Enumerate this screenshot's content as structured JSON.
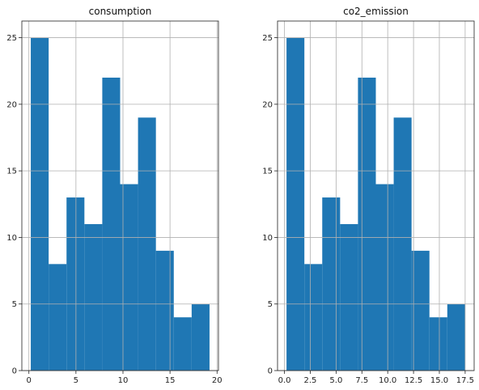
{
  "chart_data": [
    {
      "type": "bar",
      "title": "consumption",
      "xlabel": "",
      "ylabel": "",
      "grid": true,
      "bin_edges": [
        0.2,
        2.1,
        4.0,
        5.9,
        7.8,
        9.7,
        11.6,
        13.5,
        15.4,
        17.3,
        19.2
      ],
      "values": [
        25,
        8,
        13,
        11,
        22,
        14,
        19,
        9,
        4,
        5
      ],
      "xlim": [
        -0.75,
        20.15
      ],
      "ylim": [
        0,
        26.25
      ],
      "xticks": [
        0,
        5,
        10,
        15,
        20
      ],
      "xtick_labels": [
        "0",
        "5",
        "10",
        "15",
        "20"
      ],
      "yticks": [
        0,
        5,
        10,
        15,
        20,
        25
      ],
      "ytick_labels": [
        "0",
        "5",
        "10",
        "15",
        "20",
        "25"
      ],
      "color": "#1f77b4"
    },
    {
      "type": "bar",
      "title": "co2_emission",
      "xlabel": "",
      "ylabel": "",
      "grid": true,
      "bin_edges": [
        0.2,
        1.93,
        3.66,
        5.39,
        7.12,
        8.85,
        10.58,
        12.31,
        14.04,
        15.77,
        17.5
      ],
      "values": [
        25,
        8,
        13,
        11,
        22,
        14,
        19,
        9,
        4,
        5
      ],
      "xlim": [
        -0.67,
        18.37
      ],
      "ylim": [
        0,
        26.25
      ],
      "xticks": [
        0.0,
        2.5,
        5.0,
        7.5,
        10.0,
        12.5,
        15.0,
        17.5
      ],
      "xtick_labels": [
        "0.0",
        "2.5",
        "5.0",
        "7.5",
        "10.0",
        "12.5",
        "15.0",
        "17.5"
      ],
      "yticks": [
        0,
        5,
        10,
        15,
        20,
        25
      ],
      "ytick_labels": [
        "0",
        "5",
        "10",
        "15",
        "20",
        "25"
      ],
      "color": "#1f77b4"
    }
  ]
}
